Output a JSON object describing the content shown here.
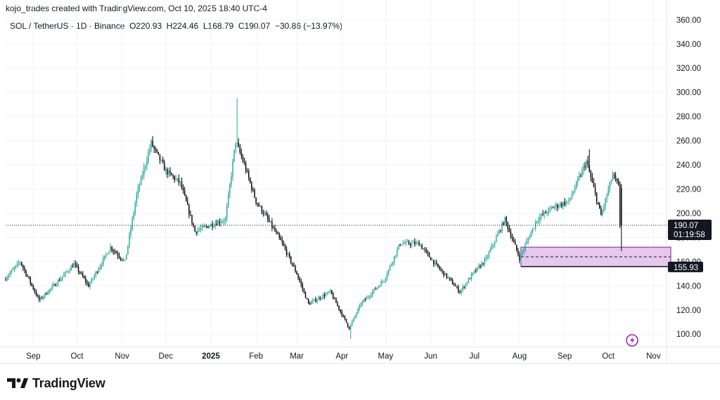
{
  "header": {
    "credit": "kojo_trades created with TradingView.com, Oct 10, 2025 18:40 UTC-4",
    "symbol": "SOL / TetherUS · 1D · Binance",
    "open_label": "O",
    "open": "220.93",
    "high_label": "H",
    "high": "224.46",
    "low_label": "L",
    "low": "168.79",
    "close_label": "C",
    "close": "190.07",
    "change": "−30.86 (−13.97%)"
  },
  "brand": {
    "name": "TradingView"
  },
  "price_tags": {
    "last_price": "190.07",
    "countdown": "01:19:58",
    "zone_low": "155.93"
  },
  "chart_data": {
    "type": "candlestick",
    "title": "",
    "xlabel": "",
    "ylabel": "",
    "ylim": [
      92,
      366
    ],
    "yticks": [
      "100.00",
      "120.00",
      "140.00",
      "160.00",
      "180.00",
      "200.00",
      "220.00",
      "240.00",
      "260.00",
      "280.00",
      "300.00",
      "320.00",
      "340.00",
      "360.00"
    ],
    "xticks": [
      {
        "label": "Sep",
        "date": "2024-09-01",
        "bold": false
      },
      {
        "label": "Oct",
        "date": "2024-10-01",
        "bold": false
      },
      {
        "label": "Nov",
        "date": "2024-11-01",
        "bold": false
      },
      {
        "label": "Dec",
        "date": "2024-12-01",
        "bold": false
      },
      {
        "label": "2025",
        "date": "2025-01-01",
        "bold": true
      },
      {
        "label": "Feb",
        "date": "2025-02-01",
        "bold": false
      },
      {
        "label": "Mar",
        "date": "2025-03-01",
        "bold": false
      },
      {
        "label": "Apr",
        "date": "2025-04-01",
        "bold": false
      },
      {
        "label": "May",
        "date": "2025-05-01",
        "bold": false
      },
      {
        "label": "Jun",
        "date": "2025-06-01",
        "bold": false
      },
      {
        "label": "Jul",
        "date": "2025-07-01",
        "bold": false
      },
      {
        "label": "Aug",
        "date": "2025-08-01",
        "bold": false
      },
      {
        "label": "Sep",
        "date": "2025-09-01",
        "bold": false
      },
      {
        "label": "Oct",
        "date": "2025-10-01",
        "bold": false
      },
      {
        "label": "Nov",
        "date": "2025-11-01",
        "bold": false
      }
    ],
    "x_range": [
      "2024-08-13",
      "2025-11-10"
    ],
    "price_path": [
      [
        "2024-08-13",
        145
      ],
      [
        "2024-08-24",
        160
      ],
      [
        "2024-09-06",
        128
      ],
      [
        "2024-09-20",
        145
      ],
      [
        "2024-09-30",
        158
      ],
      [
        "2024-10-10",
        140
      ],
      [
        "2024-10-25",
        172
      ],
      [
        "2024-11-04",
        160
      ],
      [
        "2024-11-12",
        215
      ],
      [
        "2024-11-22",
        258
      ],
      [
        "2024-12-02",
        235
      ],
      [
        "2024-12-12",
        225
      ],
      [
        "2024-12-22",
        185
      ],
      [
        "2025-01-01",
        190
      ],
      [
        "2025-01-12",
        195
      ],
      [
        "2025-01-19",
        260
      ],
      [
        "2025-01-25",
        240
      ],
      [
        "2025-02-02",
        210
      ],
      [
        "2025-02-10",
        195
      ],
      [
        "2025-02-20",
        175
      ],
      [
        "2025-03-02",
        150
      ],
      [
        "2025-03-10",
        125
      ],
      [
        "2025-03-25",
        135
      ],
      [
        "2025-04-07",
        105
      ],
      [
        "2025-04-15",
        125
      ],
      [
        "2025-05-01",
        145
      ],
      [
        "2025-05-12",
        175
      ],
      [
        "2025-05-25",
        175
      ],
      [
        "2025-06-05",
        158
      ],
      [
        "2025-06-15",
        145
      ],
      [
        "2025-06-22",
        135
      ],
      [
        "2025-07-01",
        150
      ],
      [
        "2025-07-10",
        162
      ],
      [
        "2025-07-23",
        195
      ],
      [
        "2025-08-02",
        163
      ],
      [
        "2025-08-14",
        195
      ],
      [
        "2025-08-25",
        205
      ],
      [
        "2025-09-05",
        210
      ],
      [
        "2025-09-17",
        243
      ],
      [
        "2025-09-27",
        198
      ],
      [
        "2025-10-05",
        232
      ],
      [
        "2025-10-09",
        222
      ],
      [
        "2025-10-10",
        190
      ]
    ],
    "last_candle": {
      "date": "2025-10-10",
      "open": 220.93,
      "high": 224.46,
      "low": 168.79,
      "close": 190.07
    },
    "key_highs": [
      [
        "2025-01-19",
        295
      ],
      [
        "2025-04-07",
        96
      ],
      [
        "2024-11-22",
        264
      ],
      [
        "2025-09-18",
        253
      ]
    ],
    "last_price_line": 190.07,
    "demand_zone": {
      "top": 172,
      "bottom": 155.93,
      "midline": 164,
      "start": "2025-08-01",
      "color": "#e1bee7"
    },
    "colors": {
      "up": "#26a69a",
      "down": "#000000",
      "grid": "#f0f3fa",
      "zone_border": "#7b1fa2",
      "tag": "#131722"
    }
  }
}
